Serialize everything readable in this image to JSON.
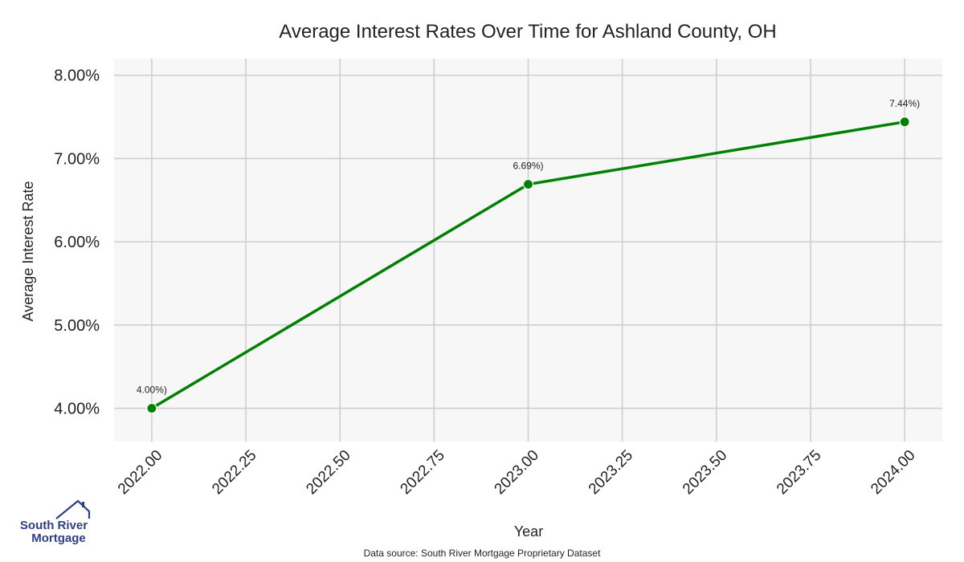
{
  "chart_data": {
    "type": "line",
    "title": "Average Interest Rates Over Time for Ashland County, OH",
    "xlabel": "Year",
    "ylabel": "Average Interest Rate",
    "x": [
      2022.0,
      2023.0,
      2024.0
    ],
    "series": [
      {
        "values": [
          4.0,
          6.69,
          7.44
        ],
        "point_labels": [
          "4.00%)",
          "6.69%)",
          "7.44%)"
        ]
      }
    ],
    "xlim": [
      2021.9,
      2024.1
    ],
    "ylim": [
      3.6,
      8.2
    ],
    "xticks": [
      2022.0,
      2022.25,
      2022.5,
      2022.75,
      2023.0,
      2023.25,
      2023.5,
      2023.75,
      2024.0
    ],
    "xtick_labels": [
      "2022.00",
      "2022.25",
      "2022.50",
      "2022.75",
      "2023.00",
      "2023.25",
      "2023.50",
      "2023.75",
      "2024.00"
    ],
    "yticks": [
      4,
      5,
      6,
      7,
      8
    ],
    "ytick_labels": [
      "4.00%",
      "5.00%",
      "6.00%",
      "7.00%",
      "8.00%"
    ],
    "grid": true,
    "colors": {
      "line": "#008000",
      "plot_background": "#f7f7f7",
      "grid": "#cfcfcf"
    }
  },
  "footer": {
    "source": "Data source: South River Mortgage Proprietary Dataset"
  },
  "logo": {
    "line1": "South River",
    "line2": "Mortgage",
    "icon": "house-roof-icon",
    "color": "#2f3f86"
  }
}
